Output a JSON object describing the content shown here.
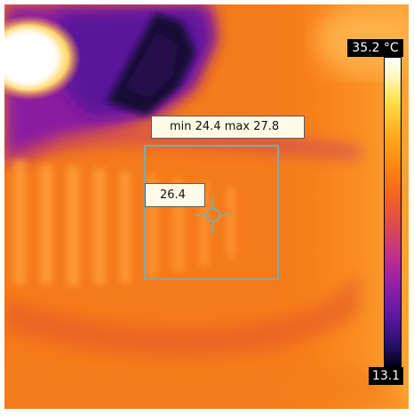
{
  "measurements": {
    "area_min_max": "min 24.4 max 27.8",
    "spot_value": "26.4"
  },
  "scale": {
    "max_label": "35.2 °C",
    "min_label": "13.1",
    "palette": "iron"
  },
  "colors": {
    "hot_white": "#ffffff",
    "yellow": "#ffe14a",
    "orange": "#f07a1a",
    "magenta": "#c1308a",
    "purple": "#6a1aa8",
    "cold_dark": "#1a0a40",
    "roi_border": "#86a8a4"
  }
}
